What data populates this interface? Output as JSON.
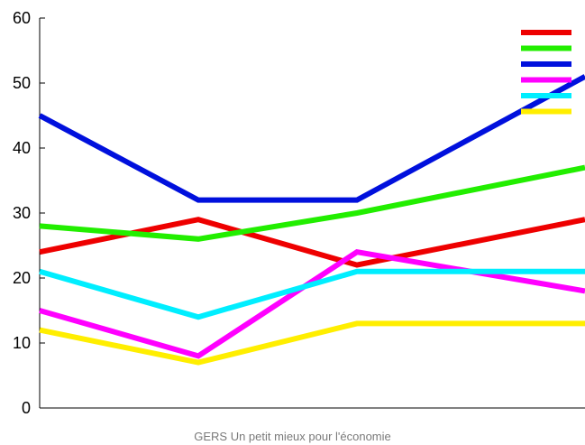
{
  "caption": "GERS Un petit mieux pour l'économie",
  "chart_data": {
    "type": "line",
    "x": [
      1,
      2,
      3,
      4
    ],
    "series": [
      {
        "color": "#ee0000",
        "values": [
          24,
          29,
          22,
          29
        ]
      },
      {
        "color": "#22ee00",
        "values": [
          28,
          26,
          30,
          37
        ]
      },
      {
        "color": "#0010dd",
        "values": [
          45,
          32,
          32,
          51
        ]
      },
      {
        "color": "#ff00ff",
        "values": [
          15,
          8,
          24,
          18
        ]
      },
      {
        "color": "#00eeff",
        "values": [
          21,
          14,
          21,
          21
        ]
      },
      {
        "color": "#ffee00",
        "values": [
          12,
          7,
          13,
          13
        ]
      }
    ],
    "ylim": [
      0,
      60
    ],
    "yticks": [
      "0",
      "10",
      "20",
      "30",
      "40",
      "50",
      "60"
    ],
    "grid": false,
    "legend": "top-right"
  }
}
